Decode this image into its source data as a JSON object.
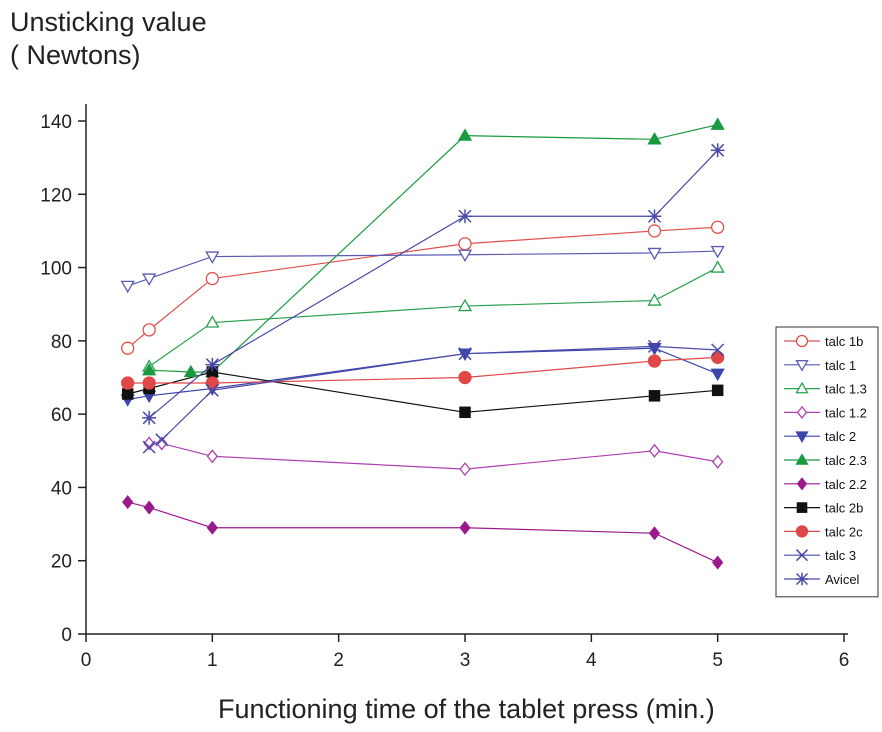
{
  "chart_data": {
    "type": "line",
    "ylabel": "Unsticking value\n( Newtons)",
    "xlabel": "Functioning time of the tablet press (min.)",
    "xlim": [
      0,
      6
    ],
    "ylim": [
      0,
      140
    ],
    "xticks": [
      0,
      1,
      2,
      3,
      4,
      5,
      6
    ],
    "yticks": [
      0,
      20,
      40,
      60,
      80,
      100,
      120,
      140
    ],
    "grid": false,
    "legend_position": "right",
    "series": [
      {
        "name": "talc 1b",
        "marker": "circle-open",
        "color": "#e05050",
        "x": [
          0.33,
          0.5,
          1,
          3,
          4.5,
          5
        ],
        "y": [
          78,
          83,
          97,
          106.5,
          110,
          111
        ]
      },
      {
        "name": "talc 1",
        "marker": "triangle-down-open",
        "color": "#5a5ab4",
        "x": [
          0.33,
          0.5,
          1,
          3,
          4.5,
          5
        ],
        "y": [
          95,
          97,
          103,
          103.5,
          104,
          104.5
        ]
      },
      {
        "name": "talc 1.3",
        "marker": "triangle-up-open",
        "color": "#2aa050",
        "x": [
          0.5,
          1,
          3,
          4.5,
          5
        ],
        "y": [
          73,
          85,
          89.5,
          91,
          100
        ]
      },
      {
        "name": "talc 1.2",
        "marker": "diamond-open",
        "color": "#b040b0",
        "x": [
          0.5,
          0.6,
          1,
          3,
          4.5,
          5
        ],
        "y": [
          52,
          52,
          48.5,
          45,
          50,
          47
        ]
      },
      {
        "name": "talc 2",
        "marker": "triangle-down",
        "color": "#3c46aa",
        "x": [
          0.33,
          0.5,
          1,
          3,
          4.5,
          5
        ],
        "y": [
          64,
          65,
          67,
          76.5,
          78,
          71
        ]
      },
      {
        "name": "talc 2.3",
        "marker": "triangle-up",
        "color": "#1a9a40",
        "x": [
          0.5,
          0.83,
          1,
          3,
          4.5,
          5
        ],
        "y": [
          72,
          71.5,
          71.5,
          136,
          135,
          139
        ]
      },
      {
        "name": "talc 2.2",
        "marker": "diamond",
        "color": "#9a1c8c",
        "x": [
          0.33,
          0.5,
          1,
          3,
          4.5,
          5
        ],
        "y": [
          36,
          34.5,
          29,
          29,
          27.5,
          19.5
        ]
      },
      {
        "name": "talc 2b",
        "marker": "square",
        "color": "#111111",
        "x": [
          0.33,
          0.5,
          1,
          3,
          4.5,
          5
        ],
        "y": [
          65.5,
          67,
          71.5,
          60.5,
          65,
          66.5
        ]
      },
      {
        "name": "talc 2c",
        "marker": "circle",
        "color": "#e04848",
        "x": [
          0.33,
          0.5,
          1,
          3,
          4.5,
          5
        ],
        "y": [
          68.5,
          68.5,
          68.5,
          70,
          74.5,
          75.5
        ]
      },
      {
        "name": "talc 3",
        "marker": "x",
        "color": "#4a4aa8",
        "x": [
          0.5,
          0.6,
          1,
          3,
          4.5,
          5
        ],
        "y": [
          51,
          53,
          66.5,
          76.5,
          78.5,
          77.5
        ]
      },
      {
        "name": "Avicel",
        "marker": "asterisk",
        "color": "#4a4aa8",
        "x": [
          0.5,
          1,
          3,
          4.5,
          5
        ],
        "y": [
          59,
          73.5,
          114,
          114,
          132
        ]
      }
    ]
  }
}
